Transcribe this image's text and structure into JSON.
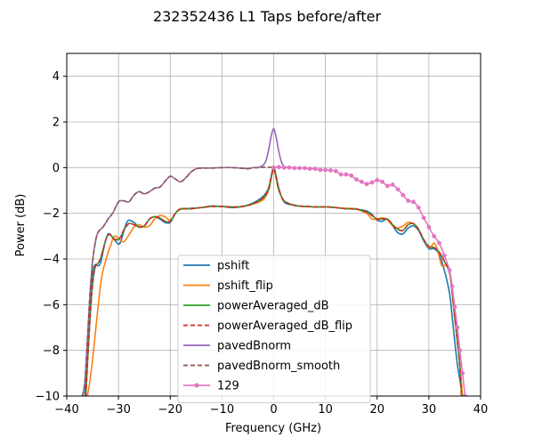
{
  "chart_data": {
    "type": "line",
    "title": "232352436 L1 Taps before/after",
    "xlabel": "Frequency (GHz)",
    "ylabel": "Power (dB)",
    "xlim": [
      -40,
      40
    ],
    "ylim": [
      -10,
      5
    ],
    "xticks": [
      -40,
      -30,
      -20,
      -10,
      0,
      10,
      20,
      30,
      40
    ],
    "yticks": [
      -10,
      -8,
      -6,
      -4,
      -2,
      0,
      2,
      4
    ],
    "xtick_labels": [
      "−40",
      "−30",
      "−20",
      "−10",
      "0",
      "10",
      "20",
      "30",
      "40"
    ],
    "ytick_labels": [
      "−10",
      "−8",
      "−6",
      "−4",
      "−2",
      "0",
      "2",
      "4"
    ],
    "grid": true,
    "legend_position": "lower-center",
    "series": [
      {
        "name": "pshift",
        "color": "#1f77b4",
        "style": "solid",
        "x": [
          -36.5,
          -36,
          -35.5,
          -35,
          -34.5,
          -34,
          -33.5,
          -33,
          -32.5,
          -32,
          -31.5,
          -31,
          -30,
          -29.5,
          -29,
          -28.5,
          -28,
          -27,
          -26,
          -25,
          -24,
          -23,
          -22,
          -21,
          -20,
          -19,
          -18,
          -17,
          -16,
          -14,
          -12,
          -10,
          -8,
          -6,
          -4,
          -2,
          -1,
          -0.5,
          0,
          0.5,
          1,
          2,
          4,
          6,
          8,
          10,
          12,
          14,
          16,
          18,
          19,
          20,
          21,
          22,
          23,
          24,
          25,
          26,
          27,
          28,
          29,
          30,
          31,
          32,
          33,
          34,
          34.5,
          35,
          35.5,
          36,
          36.5
        ],
        "y": [
          -10,
          -7.8,
          -5.8,
          -4.6,
          -4.25,
          -4.3,
          -4.2,
          -3.7,
          -3.2,
          -2.9,
          -2.95,
          -3.1,
          -3.35,
          -3.2,
          -2.8,
          -2.45,
          -2.3,
          -2.4,
          -2.6,
          -2.55,
          -2.25,
          -2.15,
          -2.25,
          -2.4,
          -2.4,
          -2.0,
          -1.8,
          -1.8,
          -1.78,
          -1.75,
          -1.68,
          -1.7,
          -1.75,
          -1.7,
          -1.55,
          -1.25,
          -0.9,
          -0.4,
          0.05,
          -0.4,
          -0.9,
          -1.5,
          -1.65,
          -1.7,
          -1.72,
          -1.72,
          -1.75,
          -1.8,
          -1.82,
          -1.9,
          -2.05,
          -2.3,
          -2.35,
          -2.25,
          -2.55,
          -2.85,
          -2.9,
          -2.65,
          -2.55,
          -2.75,
          -3.2,
          -3.55,
          -3.55,
          -3.8,
          -4.5,
          -5.5,
          -6.5,
          -7.6,
          -8.6,
          -9.3,
          -10
        ]
      },
      {
        "name": "pshift_flip",
        "color": "#ff7f0e",
        "style": "solid",
        "x": [
          -36,
          -35.5,
          -35,
          -34.5,
          -34,
          -33.5,
          -33,
          -32.5,
          -32,
          -31.5,
          -31,
          -30.5,
          -30,
          -29,
          -28,
          -27,
          -26,
          -25,
          -24,
          -23,
          -22,
          -21,
          -20,
          -19,
          -18,
          -16,
          -14,
          -12,
          -10,
          -8,
          -6,
          -4,
          -2,
          -1,
          -0.5,
          0,
          0.5,
          1,
          2,
          4,
          6,
          8,
          10,
          12,
          14,
          16,
          17,
          18,
          19,
          20,
          21,
          22,
          23,
          24,
          25,
          26,
          27,
          28,
          29,
          30,
          30.5,
          31,
          31.5,
          32,
          32.5,
          33,
          33.5,
          34,
          34.5,
          35,
          35.5,
          36,
          36.5
        ],
        "y": [
          -10,
          -9.3,
          -8.4,
          -7.3,
          -6.2,
          -5.2,
          -4.5,
          -4.1,
          -3.7,
          -3.4,
          -3.05,
          -3.0,
          -3.1,
          -3.25,
          -2.95,
          -2.6,
          -2.5,
          -2.6,
          -2.55,
          -2.25,
          -2.1,
          -2.15,
          -2.3,
          -2.0,
          -1.8,
          -1.8,
          -1.75,
          -1.7,
          -1.7,
          -1.72,
          -1.7,
          -1.6,
          -1.4,
          -1.0,
          -0.5,
          0.0,
          -0.5,
          -1.0,
          -1.45,
          -1.65,
          -1.7,
          -1.72,
          -1.72,
          -1.75,
          -1.78,
          -1.8,
          -1.9,
          -2.0,
          -2.25,
          -2.25,
          -2.2,
          -2.3,
          -2.55,
          -2.65,
          -2.55,
          -2.4,
          -2.45,
          -2.7,
          -3.15,
          -3.5,
          -3.45,
          -3.3,
          -3.5,
          -3.9,
          -4.3,
          -4.3,
          -4.25,
          -4.5,
          -5.5,
          -6.6,
          -7.6,
          -8.7,
          -10
        ]
      },
      {
        "name": "powerAveraged_dB",
        "color": "#2ca02c",
        "style": "solid",
        "x": [
          -36.3,
          -36,
          -35.5,
          -35,
          -34.5,
          -34,
          -33.5,
          -33,
          -32.5,
          -32,
          -31.5,
          -31,
          -30.5,
          -30,
          -29.5,
          -29,
          -28,
          -27,
          -26,
          -25,
          -24,
          -23,
          -22,
          -21,
          -20,
          -19,
          -18,
          -16,
          -14,
          -12,
          -10,
          -8,
          -6,
          -4,
          -2,
          -1,
          -0.5,
          0,
          0.5,
          1,
          2,
          4,
          6,
          8,
          10,
          12,
          14,
          16,
          18,
          19,
          20,
          21,
          22,
          23,
          24,
          25,
          26,
          27,
          28,
          29,
          30,
          31,
          32,
          33,
          34,
          34.5,
          35,
          35.5,
          36,
          36.3
        ],
        "y": [
          -10,
          -8.6,
          -6.6,
          -5.1,
          -4.35,
          -4.2,
          -4.0,
          -3.6,
          -3.2,
          -2.95,
          -2.95,
          -3.1,
          -3.15,
          -3.15,
          -3.0,
          -2.75,
          -2.45,
          -2.5,
          -2.6,
          -2.55,
          -2.25,
          -2.15,
          -2.2,
          -2.35,
          -2.35,
          -2.0,
          -1.82,
          -1.8,
          -1.75,
          -1.7,
          -1.7,
          -1.73,
          -1.7,
          -1.58,
          -1.32,
          -0.95,
          -0.45,
          -0.05,
          -0.45,
          -0.95,
          -1.45,
          -1.65,
          -1.7,
          -1.72,
          -1.72,
          -1.75,
          -1.8,
          -1.82,
          -1.95,
          -2.1,
          -2.25,
          -2.25,
          -2.25,
          -2.5,
          -2.7,
          -2.75,
          -2.5,
          -2.45,
          -2.7,
          -3.15,
          -3.45,
          -3.5,
          -3.7,
          -4.1,
          -4.6,
          -5.4,
          -6.5,
          -7.6,
          -8.7,
          -10
        ]
      },
      {
        "name": "powerAveraged_dB_flip",
        "color": "#d62728",
        "style": "dashed",
        "x": [
          -36.3,
          -36,
          -35.5,
          -35,
          -34.5,
          -34,
          -33.5,
          -33,
          -32.5,
          -32,
          -31.5,
          -31,
          -30.5,
          -30,
          -29.5,
          -29,
          -28,
          -27,
          -26,
          -25,
          -24,
          -23,
          -22,
          -21,
          -20,
          -19,
          -18,
          -16,
          -14,
          -12,
          -10,
          -8,
          -6,
          -4,
          -2,
          -1,
          -0.5,
          0,
          0.5,
          1,
          2,
          4,
          6,
          8,
          10,
          12,
          14,
          16,
          18,
          19,
          20,
          21,
          22,
          23,
          24,
          25,
          26,
          27,
          28,
          29,
          30,
          31,
          32,
          33,
          34,
          34.5,
          35,
          35.5,
          36,
          36.3
        ],
        "y": [
          -10,
          -8.6,
          -6.6,
          -5.1,
          -4.35,
          -4.2,
          -4.0,
          -3.6,
          -3.2,
          -2.95,
          -2.95,
          -3.1,
          -3.15,
          -3.15,
          -3.0,
          -2.75,
          -2.45,
          -2.5,
          -2.6,
          -2.55,
          -2.25,
          -2.15,
          -2.2,
          -2.35,
          -2.35,
          -2.0,
          -1.82,
          -1.8,
          -1.75,
          -1.7,
          -1.7,
          -1.73,
          -1.7,
          -1.58,
          -1.32,
          -0.95,
          -0.45,
          -0.05,
          -0.45,
          -0.95,
          -1.45,
          -1.65,
          -1.7,
          -1.72,
          -1.72,
          -1.75,
          -1.8,
          -1.82,
          -1.95,
          -2.1,
          -2.25,
          -2.25,
          -2.25,
          -2.5,
          -2.7,
          -2.75,
          -2.5,
          -2.45,
          -2.7,
          -3.15,
          -3.45,
          -3.5,
          -3.7,
          -4.1,
          -4.6,
          -5.4,
          -6.5,
          -7.6,
          -8.7,
          -10
        ]
      },
      {
        "name": "pavedBnorm",
        "color": "#9467bd",
        "style": "solid",
        "x": [
          -37,
          -36.5,
          -36,
          -35.5,
          -35,
          -34.5,
          -34,
          -33,
          -32,
          -31,
          -30,
          -29,
          -28,
          -27,
          -26,
          -25,
          -24,
          -23,
          -22,
          -21,
          -20,
          -19,
          -18,
          -17,
          -16,
          -15,
          -14,
          -12,
          -10,
          -8,
          -6,
          -5,
          -4,
          -3,
          -2,
          -1.5,
          -1,
          -0.5,
          0,
          0.5,
          1,
          1.5,
          2,
          3
        ],
        "y": [
          -10,
          -9.4,
          -7.5,
          -5.5,
          -4.1,
          -3.3,
          -2.85,
          -2.6,
          -2.25,
          -1.95,
          -1.5,
          -1.45,
          -1.5,
          -1.2,
          -1.05,
          -1.15,
          -1.05,
          -0.9,
          -0.85,
          -0.6,
          -0.38,
          -0.5,
          -0.62,
          -0.45,
          -0.2,
          -0.05,
          -0.02,
          -0.02,
          0.0,
          0.0,
          -0.03,
          -0.05,
          0.0,
          0.0,
          0.12,
          0.3,
          0.75,
          1.35,
          1.7,
          1.3,
          0.7,
          0.25,
          0.05,
          0.0
        ]
      },
      {
        "name": "pavedBnorm_smooth",
        "color": "#8c564b",
        "style": "dashed",
        "x": [
          -37,
          -36.5,
          -36,
          -35.5,
          -35,
          -34.5,
          -34,
          -33,
          -32,
          -31,
          -30,
          -29,
          -28,
          -27,
          -26,
          -25,
          -24,
          -23,
          -22,
          -21,
          -20,
          -19,
          -18,
          -17,
          -16,
          -15,
          -14,
          -12,
          -10,
          -8,
          -6,
          -5,
          -4,
          -3,
          -2,
          -1,
          0
        ],
        "y": [
          -10,
          -9.4,
          -7.5,
          -5.5,
          -4.1,
          -3.3,
          -2.85,
          -2.6,
          -2.25,
          -1.95,
          -1.5,
          -1.45,
          -1.5,
          -1.2,
          -1.05,
          -1.15,
          -1.05,
          -0.9,
          -0.85,
          -0.6,
          -0.38,
          -0.5,
          -0.62,
          -0.45,
          -0.2,
          -0.05,
          -0.02,
          -0.02,
          0.0,
          0.0,
          -0.03,
          -0.05,
          0.0,
          0.0,
          0.02,
          0.02,
          0.02
        ]
      },
      {
        "name": "129",
        "color": "#e377c2",
        "style": "solid-markers",
        "x": [
          0,
          1,
          2,
          3,
          4,
          5,
          6,
          7,
          8,
          9,
          10,
          11,
          12,
          13,
          14,
          15,
          16,
          17,
          18,
          19,
          20,
          21,
          22,
          23,
          24,
          25,
          26,
          27,
          28,
          29,
          30,
          31,
          32,
          33,
          34,
          34.5,
          35,
          35.5,
          36,
          36.5,
          37
        ],
        "y": [
          0.0,
          0.02,
          0.0,
          0.0,
          -0.02,
          -0.02,
          -0.02,
          -0.05,
          -0.05,
          -0.1,
          -0.1,
          -0.12,
          -0.15,
          -0.3,
          -0.3,
          -0.35,
          -0.52,
          -0.62,
          -0.72,
          -0.65,
          -0.55,
          -0.62,
          -0.8,
          -0.75,
          -0.95,
          -1.2,
          -1.45,
          -1.5,
          -1.75,
          -2.2,
          -2.6,
          -3.0,
          -3.3,
          -3.85,
          -4.5,
          -5.2,
          -6.1,
          -7.0,
          -8.0,
          -9.0,
          -10.0
        ]
      }
    ]
  }
}
